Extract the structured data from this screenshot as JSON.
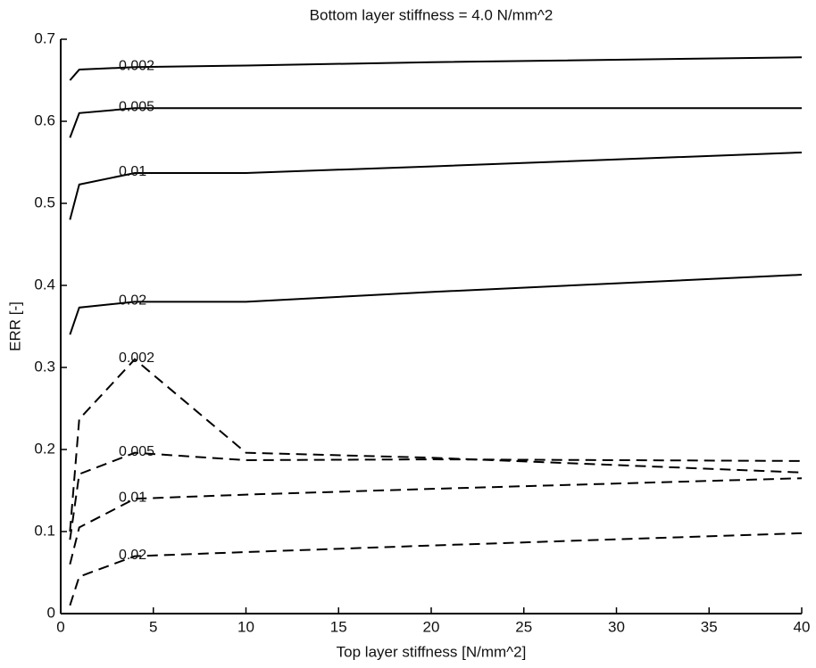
{
  "chart_data": {
    "type": "line",
    "title": "Bottom layer stiffness = 4.0 N/mm^2",
    "x_label": "Top layer stiffness [N/mm^2]",
    "y_label": "ERR [-]",
    "x": [
      0.5,
      1,
      4,
      10,
      20,
      40
    ],
    "series": [
      {
        "name": "0.002",
        "color": "#000000",
        "dash": false,
        "values": [
          0.65,
          0.663,
          0.666,
          0.668,
          0.672,
          0.678
        ]
      },
      {
        "name": "0.005",
        "color": "#000000",
        "dash": false,
        "values": [
          0.58,
          0.61,
          0.616,
          0.616,
          0.616,
          0.616
        ]
      },
      {
        "name": "0.01",
        "color": "#000000",
        "dash": false,
        "values": [
          0.48,
          0.523,
          0.537,
          0.537,
          0.545,
          0.562
        ]
      },
      {
        "name": "0.02",
        "color": "#000000",
        "dash": false,
        "values": [
          0.34,
          0.373,
          0.38,
          0.38,
          0.392,
          0.413
        ]
      },
      {
        "name": "0.002",
        "color": "#000000",
        "dash": true,
        "values": [
          0.1,
          0.237,
          0.31,
          0.196,
          0.19,
          0.172
        ]
      },
      {
        "name": "0.005",
        "color": "#000000",
        "dash": true,
        "values": [
          0.09,
          0.17,
          0.196,
          0.187,
          0.188,
          0.186
        ]
      },
      {
        "name": "0.01",
        "color": "#000000",
        "dash": true,
        "values": [
          0.06,
          0.105,
          0.14,
          0.145,
          0.152,
          0.165
        ]
      },
      {
        "name": "0.02",
        "color": "#000000",
        "dash": true,
        "values": [
          0.01,
          0.045,
          0.07,
          0.075,
          0.083,
          0.098
        ]
      }
    ],
    "xlim": [
      0,
      40
    ],
    "xticks": [
      0,
      5,
      10,
      15,
      20,
      25,
      30,
      35,
      40
    ],
    "ylim": [
      0,
      0.7
    ],
    "yticks": [
      0,
      0.1,
      0.2,
      0.3,
      0.4,
      0.5,
      0.6,
      0.7
    ],
    "grid": false
  }
}
